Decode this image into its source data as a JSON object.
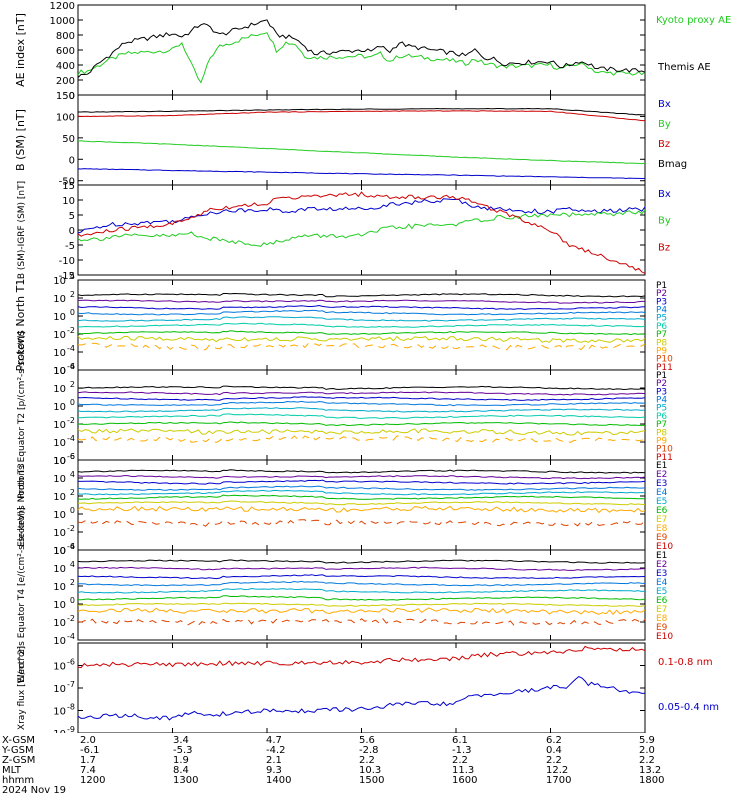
{
  "chart_data": [
    {
      "type": "line",
      "id": "ae",
      "ylabel": "AE index [nT]",
      "ylim": [
        0,
        1200
      ],
      "yticks": [
        "0",
        "200",
        "400",
        "600",
        "800",
        "1000",
        "1200"
      ],
      "tick_values": [
        0,
        200,
        400,
        600,
        800,
        1000,
        1200
      ],
      "legend_position": "right",
      "x": [
        1200,
        1210,
        1220,
        1230,
        1240,
        1250,
        1300,
        1310,
        1320,
        1330,
        1340,
        1350,
        1400,
        1410,
        1420,
        1430,
        1440,
        1450,
        1500,
        1510,
        1520,
        1530,
        1540,
        1550,
        1600,
        1610,
        1620,
        1630,
        1640,
        1650,
        1700,
        1710,
        1720,
        1730,
        1740,
        1750,
        1800
      ],
      "series": [
        {
          "name": "Kyoto proxy AE",
          "color": "#22cc22",
          "values": [
            300,
            320,
            380,
            450,
            500,
            550,
            600,
            700,
            400,
            150,
            500,
            650,
            850,
            600,
            700,
            680,
            520,
            500,
            520,
            500,
            550,
            450,
            520,
            520,
            450,
            420,
            480,
            420,
            400,
            380,
            400,
            350,
            380,
            420,
            380,
            300,
            280
          ]
        },
        {
          "name": "Themis AE",
          "color": "#000000",
          "values": [
            250,
            280,
            400,
            500,
            600,
            700,
            820,
            780,
            850,
            950,
            900,
            800,
            1000,
            800,
            780,
            750,
            650,
            550,
            600,
            580,
            650,
            580,
            700,
            650,
            550,
            520,
            600,
            500,
            480,
            420,
            450,
            380,
            400,
            450,
            420,
            350,
            320
          ]
        }
      ]
    },
    {
      "type": "line",
      "id": "bsm",
      "ylabel": "B (SM) [nT]",
      "ylim": [
        -60,
        150
      ],
      "yticks": [
        "-50",
        "0",
        "50",
        "100",
        "150"
      ],
      "tick_values": [
        -50,
        0,
        50,
        100,
        150
      ],
      "legend_position": "right",
      "x": [
        1200,
        1300,
        1400,
        1500,
        1600,
        1700,
        1800
      ],
      "series": [
        {
          "name": "Bx",
          "color": "#0000cc",
          "values": [
            -22,
            -26,
            -30,
            -34,
            -37,
            -41,
            -45
          ]
        },
        {
          "name": "By",
          "color": "#22cc22",
          "values": [
            43,
            35,
            25,
            15,
            5,
            -3,
            -10
          ]
        },
        {
          "name": "Bz",
          "color": "#cc0000",
          "values": [
            100,
            102,
            110,
            112,
            113,
            112,
            90
          ]
        },
        {
          "name": "Bmag",
          "color": "#000000",
          "values": [
            110,
            112,
            115,
            117,
            118,
            118,
            103
          ]
        }
      ]
    },
    {
      "type": "line",
      "id": "bdiff",
      "ylabel": "B (SM)-IGRF (SM) [nT]",
      "ylim": [
        -15,
        15
      ],
      "yticks": [
        "-15",
        "-10",
        "-5",
        "0",
        "5",
        "10",
        "15"
      ],
      "tick_values": [
        -15,
        -10,
        -5,
        0,
        5,
        10,
        15
      ],
      "legend_position": "right",
      "x": [
        1200,
        1220,
        1240,
        1300,
        1320,
        1340,
        1400,
        1420,
        1440,
        1500,
        1520,
        1540,
        1600,
        1620,
        1640,
        1700,
        1720,
        1740,
        1800
      ],
      "series": [
        {
          "name": "Bx",
          "color": "#0000cc",
          "values": [
            -1,
            1,
            2,
            3,
            4,
            6,
            7,
            6,
            7,
            7,
            8,
            9,
            10,
            8,
            7,
            6,
            7,
            6,
            7
          ]
        },
        {
          "name": "By",
          "color": "#22cc22",
          "values": [
            -3,
            -3,
            -2,
            -2,
            -1,
            -3,
            -5,
            -3,
            -2,
            -2,
            0,
            1,
            2,
            3,
            4,
            5,
            5,
            5,
            6
          ]
        },
        {
          "name": "Bz",
          "color": "#cc0000",
          "values": [
            -2,
            -1,
            0,
            2,
            4,
            7,
            9,
            11,
            11,
            12,
            11,
            11,
            11,
            9,
            7,
            0,
            -5,
            -7,
            -14
          ]
        }
      ]
    },
    {
      "type": "line",
      "id": "pn",
      "scale": "log",
      "ylabel": "Protons North T1",
      "ylim": [
        -6,
        4
      ],
      "yticks": [
        "10",
        "10",
        "10",
        "10",
        "10",
        "10"
      ],
      "tick_values": [
        4,
        2,
        0,
        -2,
        -4,
        -6
      ],
      "tick_exponents": [
        "4",
        "2",
        "0",
        "-2",
        "-4",
        "-6"
      ],
      "channels": [
        "P1",
        "P2",
        "P3",
        "P4",
        "P5",
        "P6",
        "P7",
        "P8",
        "P9",
        "P10",
        "P11"
      ],
      "channel_colors": [
        "#000000",
        "#660099",
        "#0000cc",
        "#0077dd",
        "#00aacc",
        "#00ccaa",
        "#00bb00",
        "#cccc00",
        "#ffaa00",
        "#dd4400",
        "#cc0000"
      ],
      "levels": [
        2.3,
        1.6,
        0.9,
        0.3,
        -0.4,
        -1.1,
        -1.9,
        -2.6,
        -3.4,
        null,
        null
      ]
    },
    {
      "type": "line",
      "id": "pe",
      "scale": "log",
      "ylabel": "Protons Equator T2 [p/(cm²-s-sr-keV)]",
      "ylim": [
        -6,
        4
      ],
      "yticks": [
        "10",
        "10",
        "10",
        "10",
        "10",
        "10"
      ],
      "tick_values": [
        4,
        2,
        0,
        -2,
        -4,
        -6
      ],
      "tick_exponents": [
        "4",
        "2",
        "0",
        "-2",
        "-4",
        "-6"
      ],
      "channels": [
        "P1",
        "P2",
        "P3",
        "P4",
        "P5",
        "P6",
        "P7",
        "P8",
        "P9",
        "P10",
        "P11"
      ],
      "channel_colors": [
        "#000000",
        "#660099",
        "#0000cc",
        "#0077dd",
        "#00aacc",
        "#00ccaa",
        "#00bb00",
        "#cccc00",
        "#ffaa00",
        "#dd4400",
        "#cc0000"
      ],
      "levels": [
        2.0,
        1.4,
        0.8,
        0.2,
        -0.5,
        -1.2,
        -2.0,
        -2.9,
        -3.7,
        null,
        null
      ]
    },
    {
      "type": "line",
      "id": "en",
      "scale": "log",
      "ylabel": "Electrons North T3",
      "ylim": [
        -4,
        6
      ],
      "yticks": [
        "10",
        "10",
        "10",
        "10",
        "10",
        "10"
      ],
      "tick_values": [
        6,
        4,
        2,
        0,
        -2,
        -4
      ],
      "tick_exponents": [
        "6",
        "4",
        "2",
        "0",
        "-2",
        "-4"
      ],
      "channels": [
        "E1",
        "E2",
        "E3",
        "E4",
        "E5",
        "E6",
        "E7",
        "E8",
        "E9",
        "E10"
      ],
      "channel_colors": [
        "#000000",
        "#660099",
        "#0000cc",
        "#0077dd",
        "#00aacc",
        "#00bb00",
        "#cccc00",
        "#ffaa00",
        "#dd4400",
        "#cc0000"
      ],
      "levels": [
        4.7,
        4.1,
        3.5,
        2.8,
        2.3,
        1.8,
        1.2,
        0.5,
        -1.0,
        null
      ]
    },
    {
      "type": "line",
      "id": "ee",
      "scale": "log",
      "ylabel": "Electrons Equator T4 [e/(cm²-s-sr-keV)]",
      "ylim": [
        -4,
        6
      ],
      "yticks": [
        "10",
        "10",
        "10",
        "10",
        "10",
        "10"
      ],
      "tick_values": [
        6,
        4,
        2,
        0,
        -2,
        -4
      ],
      "tick_exponents": [
        "6",
        "4",
        "2",
        "0",
        "-2",
        "-4"
      ],
      "channels": [
        "E1",
        "E2",
        "E3",
        "E4",
        "E5",
        "E6",
        "E7",
        "E8",
        "E9",
        "E10"
      ],
      "channel_colors": [
        "#000000",
        "#660099",
        "#0000cc",
        "#0077dd",
        "#00aacc",
        "#00bb00",
        "#cccc00",
        "#ffaa00",
        "#dd4400",
        "#cc0000"
      ],
      "levels": [
        4.7,
        3.9,
        3.0,
        2.2,
        1.4,
        0.6,
        -0.1,
        -0.8,
        -2.0,
        null
      ]
    },
    {
      "type": "line",
      "id": "xray",
      "scale": "log",
      "ylabel": "Xray flux [W/m^2]",
      "ylim": [
        -9,
        -5
      ],
      "yticks": [
        "10",
        "10",
        "10",
        "10"
      ],
      "tick_values": [
        -6,
        -7,
        -8,
        -9
      ],
      "tick_exponents": [
        "-6",
        "-7",
        "-8",
        "-9"
      ],
      "legend_position": "right",
      "x": [
        1200,
        1220,
        1240,
        1300,
        1320,
        1340,
        1400,
        1420,
        1440,
        1500,
        1520,
        1540,
        1600,
        1620,
        1640,
        1700,
        1720,
        1730,
        1740,
        1750,
        1800
      ],
      "series": [
        {
          "name": "0.1-0.8 nm",
          "color": "#cc0000",
          "values": [
            -6.0,
            -6.0,
            -5.95,
            -5.95,
            -5.95,
            -5.9,
            -5.9,
            -5.9,
            -5.85,
            -5.85,
            -5.8,
            -5.75,
            -5.7,
            -5.6,
            -5.5,
            -5.45,
            -5.35,
            -5.3,
            -5.15,
            -5.3,
            -5.3
          ]
        },
        {
          "name": "0.05-0.4 nm",
          "color": "#0000cc",
          "values": [
            -8.3,
            -8.3,
            -8.2,
            -8.35,
            -8.1,
            -8.2,
            -8.0,
            -8.05,
            -8.0,
            -7.95,
            -7.85,
            -7.7,
            -7.7,
            -7.3,
            -7.3,
            -7.0,
            -6.9,
            -6.4,
            -6.8,
            -6.9,
            -7.3
          ]
        }
      ]
    }
  ],
  "ephemeris": {
    "labels": [
      "X-GSM",
      "Y-GSM",
      "Z-GSM",
      "MLT",
      "hhmm",
      "2024 Nov 19"
    ],
    "columns": [
      {
        "x": "2.0",
        "y": "-6.1",
        "z": "1.7",
        "mlt": "7.4",
        "hhmm": "1200"
      },
      {
        "x": "3.4",
        "y": "-5.3",
        "z": "1.9",
        "mlt": "8.4",
        "hhmm": "1300"
      },
      {
        "x": "4.7",
        "y": "-4.2",
        "z": "2.1",
        "mlt": "9.3",
        "hhmm": "1400"
      },
      {
        "x": "5.6",
        "y": "-2.8",
        "z": "2.2",
        "mlt": "10.3",
        "hhmm": "1500"
      },
      {
        "x": "6.1",
        "y": "-1.3",
        "z": "2.2",
        "mlt": "11.3",
        "hhmm": "1600"
      },
      {
        "x": "6.2",
        "y": "0.4",
        "z": "2.2",
        "mlt": "12.2",
        "hhmm": "1700"
      },
      {
        "x": "5.9",
        "y": "2.0",
        "z": "2.2",
        "mlt": "13.2",
        "hhmm": "1800"
      }
    ]
  }
}
